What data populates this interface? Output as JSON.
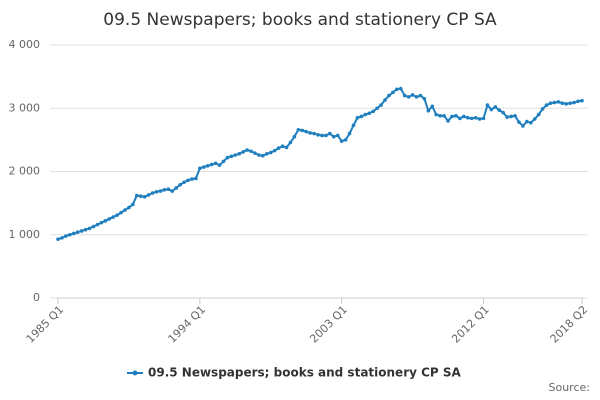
{
  "chart_data": {
    "type": "line",
    "title": "09.5 Newspapers; books and stationery CP SA",
    "categories": [
      "1985 Q1",
      null,
      null,
      null,
      null,
      null,
      null,
      null,
      null,
      null,
      null,
      null,
      null,
      null,
      null,
      null,
      null,
      null,
      null,
      null,
      null,
      null,
      null,
      null,
      null,
      null,
      null,
      null,
      null,
      null,
      null,
      null,
      null,
      null,
      null,
      null,
      "1994 Q1",
      null,
      null,
      null,
      null,
      null,
      null,
      null,
      null,
      null,
      null,
      null,
      null,
      null,
      null,
      null,
      null,
      null,
      null,
      null,
      null,
      null,
      null,
      null,
      null,
      null,
      null,
      null,
      null,
      null,
      null,
      null,
      null,
      null,
      null,
      null,
      "2003 Q1",
      null,
      null,
      null,
      null,
      null,
      null,
      null,
      null,
      null,
      null,
      null,
      null,
      null,
      null,
      null,
      null,
      null,
      null,
      null,
      null,
      null,
      null,
      null,
      null,
      null,
      null,
      null,
      null,
      null,
      null,
      null,
      null,
      null,
      null,
      null,
      "2012 Q1",
      null,
      null,
      null,
      null,
      null,
      null,
      null,
      null,
      null,
      null,
      null,
      null,
      null,
      null,
      null,
      null,
      null,
      null,
      null,
      null,
      null,
      null,
      null,
      null,
      "2018 Q2"
    ],
    "series": [
      {
        "name": "09.5 Newspapers; books and stationery CP SA",
        "color": "#1f7fbf",
        "values": [
          930,
          950,
          980,
          1000,
          1020,
          1040,
          1060,
          1080,
          1100,
          1130,
          1160,
          1190,
          1220,
          1250,
          1280,
          1310,
          1350,
          1390,
          1430,
          1480,
          1620,
          1610,
          1600,
          1630,
          1660,
          1680,
          1690,
          1710,
          1720,
          1690,
          1740,
          1790,
          1830,
          1860,
          1880,
          1890,
          2050,
          2070,
          2090,
          2110,
          2130,
          2100,
          2160,
          2220,
          2240,
          2260,
          2280,
          2310,
          2340,
          2320,
          2290,
          2260,
          2250,
          2280,
          2300,
          2330,
          2370,
          2400,
          2380,
          2460,
          2550,
          2660,
          2650,
          2630,
          2610,
          2600,
          2580,
          2570,
          2570,
          2600,
          2550,
          2570,
          2480,
          2500,
          2600,
          2730,
          2850,
          2870,
          2900,
          2920,
          2950,
          3000,
          3050,
          3130,
          3200,
          3250,
          3300,
          3310,
          3200,
          3180,
          3210,
          3180,
          3200,
          3150,
          2960,
          3030,
          2900,
          2880,
          2880,
          2800,
          2870,
          2880,
          2840,
          2870,
          2850,
          2840,
          2850,
          2830,
          2840,
          3050,
          2980,
          3020,
          2970,
          2930,
          2860,
          2870,
          2880,
          2780,
          2720,
          2790,
          2770,
          2830,
          2900,
          2990,
          3050,
          3080,
          3090,
          3100,
          3080,
          3070,
          3080,
          3090,
          3110,
          3120
        ]
      }
    ],
    "ylim": [
      0,
      4000
    ],
    "yticks": [
      0,
      {
        "value": 1000,
        "label": "1 000"
      },
      {
        "value": 2000,
        "label": "2 000"
      },
      {
        "value": 3000,
        "label": "3 000"
      },
      {
        "value": 4000,
        "label": "4 000"
      }
    ],
    "grid": true,
    "legend": "bottom",
    "source_label": "Source:"
  }
}
